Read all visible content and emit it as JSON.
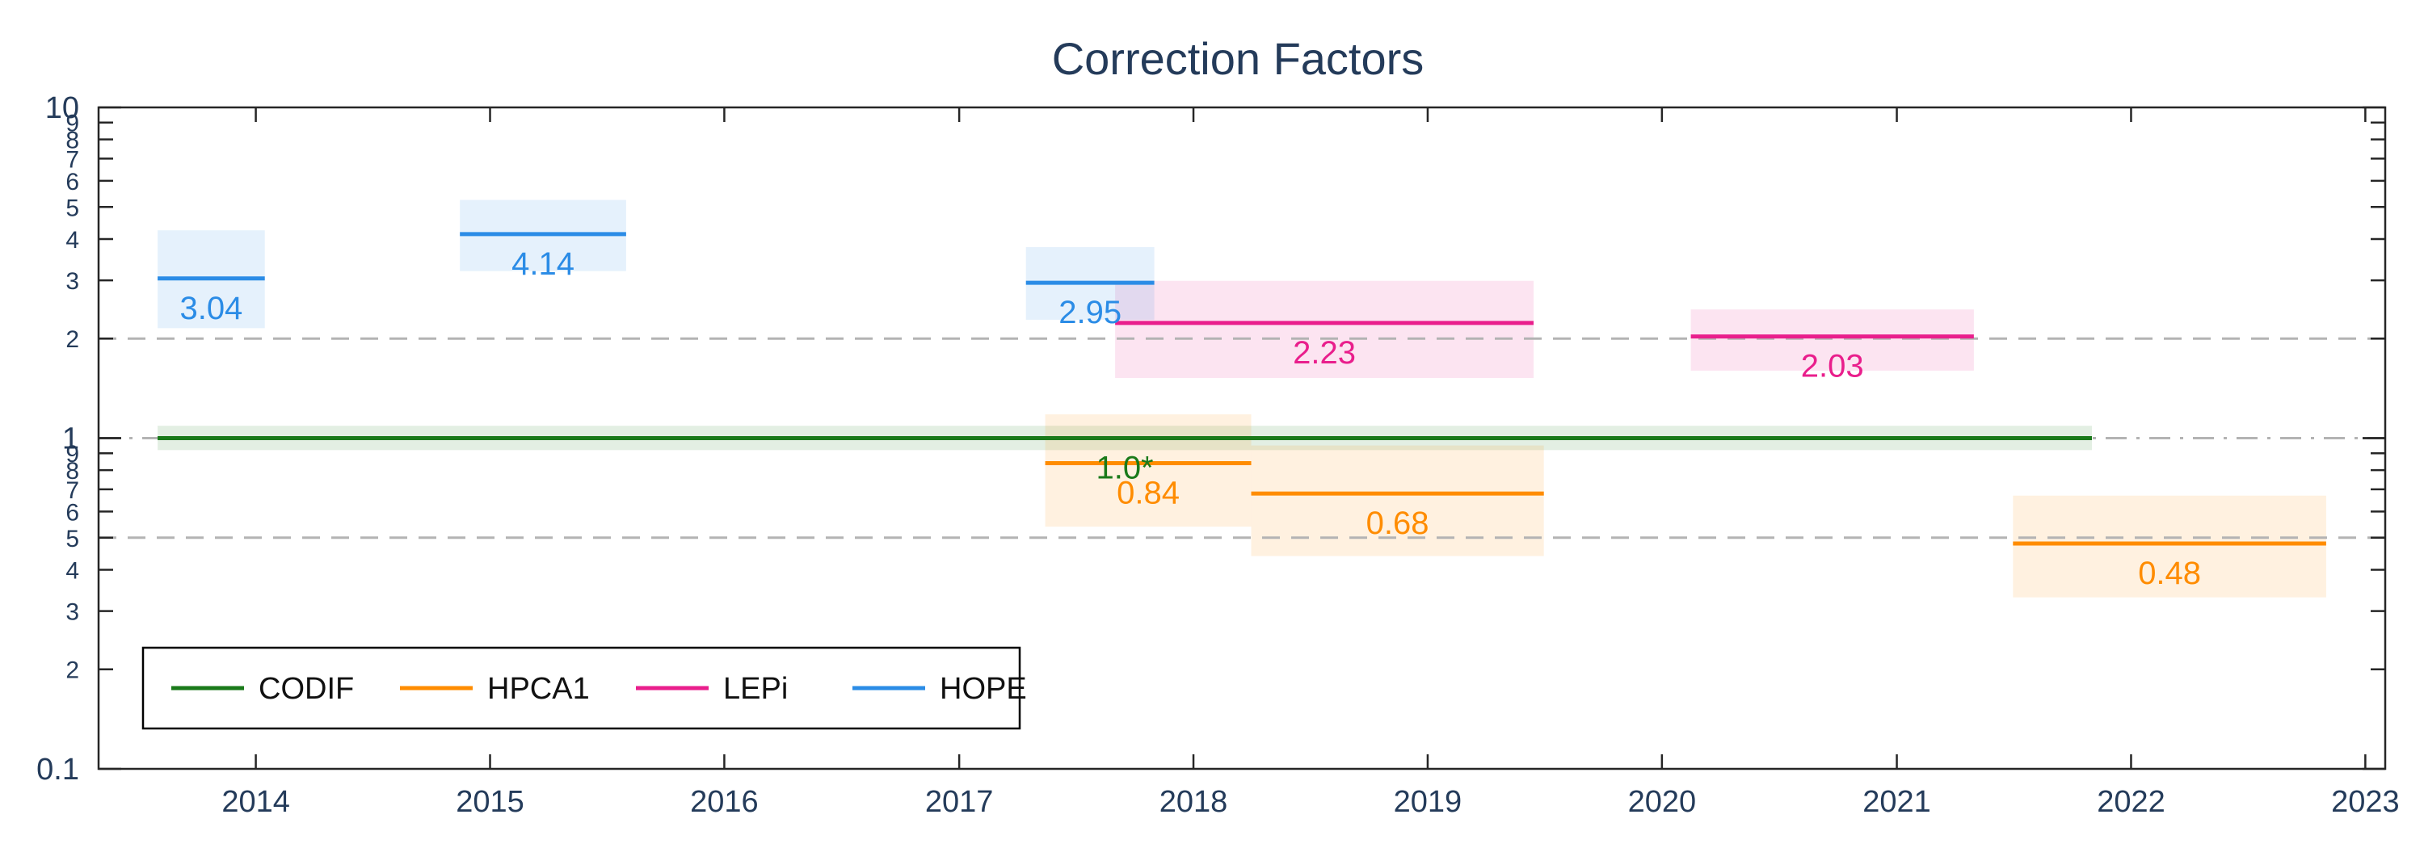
{
  "chart_data": {
    "type": "line",
    "title": "Correction Factors",
    "xlabel": "",
    "ylabel": "",
    "y_scale": "log",
    "ylim": [
      0.1,
      10
    ],
    "xlim": [
      "2013-05-01",
      "2023-02-01"
    ],
    "x_ticks": [
      "2014",
      "2015",
      "2016",
      "2017",
      "2018",
      "2019",
      "2020",
      "2021",
      "2022",
      "2023"
    ],
    "y_ticks_major": [
      "0.1",
      "1",
      "10"
    ],
    "y_ticks_minor": [
      "2",
      "3",
      "4",
      "5",
      "6",
      "7",
      "8",
      "9"
    ],
    "reference_lines": [
      {
        "y": 2,
        "style": "dashed"
      },
      {
        "y": 1,
        "style": "dash-dot"
      },
      {
        "y": 0.5,
        "style": "dashed"
      }
    ],
    "colors": {
      "CODIF": "#1a7a1a",
      "HPCA1": "#ff8c00",
      "LEPi": "#e91e8c",
      "HOPE": "#2b8ce6"
    },
    "series": [
      {
        "name": "CODIF",
        "segments": [
          {
            "start": "2013-08-01",
            "end": "2021-11-01",
            "value": 1.0,
            "low": 0.92,
            "high": 1.09,
            "label": "1.0*"
          }
        ]
      },
      {
        "name": "HPCA1",
        "segments": [
          {
            "start": "2017-05-15",
            "end": "2018-04-01",
            "value": 0.84,
            "low": 0.54,
            "high": 1.18,
            "label": "0.84"
          },
          {
            "start": "2018-04-01",
            "end": "2019-07-01",
            "value": 0.68,
            "low": 0.44,
            "high": 0.95,
            "label": "0.68"
          },
          {
            "start": "2021-07-01",
            "end": "2022-11-01",
            "value": 0.48,
            "low": 0.33,
            "high": 0.67,
            "label": "0.48"
          }
        ]
      },
      {
        "name": "LEPi",
        "segments": [
          {
            "start": "2017-09-01",
            "end": "2019-06-15",
            "value": 2.23,
            "low": 1.52,
            "high": 2.99,
            "label": "2.23"
          },
          {
            "start": "2020-02-15",
            "end": "2021-05-01",
            "value": 2.03,
            "low": 1.6,
            "high": 2.45,
            "label": "2.03"
          }
        ]
      },
      {
        "name": "HOPE",
        "segments": [
          {
            "start": "2013-08-01",
            "end": "2014-01-15",
            "value": 3.04,
            "low": 2.15,
            "high": 4.25,
            "label": "3.04"
          },
          {
            "start": "2014-11-15",
            "end": "2015-08-01",
            "value": 4.14,
            "low": 3.2,
            "high": 5.25,
            "label": "4.14"
          },
          {
            "start": "2017-04-15",
            "end": "2017-11-01",
            "value": 2.95,
            "low": 2.28,
            "high": 3.78,
            "label": "2.95"
          }
        ]
      }
    ],
    "legend": {
      "position": "bottom-left",
      "items": [
        "CODIF",
        "HPCA1",
        "LEPi",
        "HOPE"
      ]
    }
  }
}
